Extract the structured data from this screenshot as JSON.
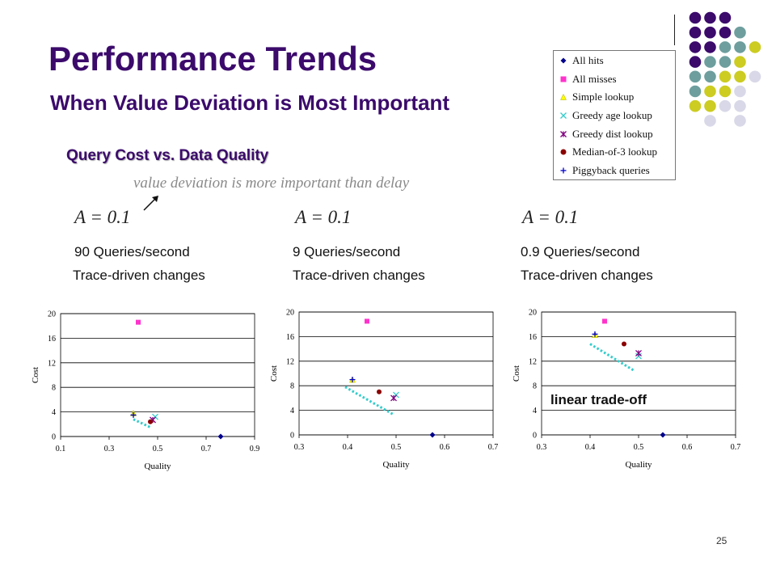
{
  "slide": {
    "title": "Performance Trends",
    "subtitle": "When Value Deviation is Most Important",
    "section_heading": "Query Cost vs. Data Quality",
    "note": "value deviation is more important than delay",
    "page_number": "25",
    "annotation": "linear trade-off"
  },
  "panels": [
    {
      "a_label": "A = 0.1",
      "rate": "90 Queries/second",
      "changes": "Trace-driven changes"
    },
    {
      "a_label": "A = 0.1",
      "rate": "9 Queries/second",
      "changes": "Trace-driven changes"
    },
    {
      "a_label": "A = 0.1",
      "rate": "0.9 Queries/second",
      "changes": "Trace-driven changes"
    }
  ],
  "legend": [
    {
      "label": "All hits",
      "marker": "diamond",
      "color": "#00008b"
    },
    {
      "label": "All misses",
      "marker": "square",
      "color": "#ff33cc"
    },
    {
      "label": "Simple lookup",
      "marker": "triangle",
      "color": "#ffff00"
    },
    {
      "label": "Greedy age lookup",
      "marker": "x",
      "color": "#33cccc"
    },
    {
      "label": "Greedy dist lookup",
      "marker": "star",
      "color": "#800080"
    },
    {
      "label": "Median-of-3 lookup",
      "marker": "circle",
      "color": "#8b0000"
    },
    {
      "label": "Piggyback queries",
      "marker": "plus",
      "color": "#0000cd"
    }
  ],
  "chart_data": [
    {
      "type": "scatter",
      "xlabel": "Quality",
      "ylabel": "Cost",
      "xlim": [
        0.1,
        0.9
      ],
      "ylim": [
        0,
        20
      ],
      "xticks": [
        "0.1",
        "0.3",
        "0.5",
        "0.7",
        "0.9"
      ],
      "yticks": [
        "0",
        "4",
        "8",
        "12",
        "16",
        "20"
      ],
      "grid": "horizontal",
      "points": [
        {
          "series": "All hits",
          "x": 0.76,
          "y": 0
        },
        {
          "series": "All misses",
          "x": 0.42,
          "y": 18.6
        },
        {
          "series": "Simple lookup",
          "x": 0.4,
          "y": 3.8
        },
        {
          "series": "Greedy age lookup",
          "x": 0.49,
          "y": 3.2
        },
        {
          "series": "Greedy dist lookup",
          "x": 0.48,
          "y": 2.7
        },
        {
          "series": "Median-of-3 lookup",
          "x": 0.47,
          "y": 2.4
        },
        {
          "series": "Piggyback queries",
          "x": 0.4,
          "y": 3.5
        }
      ],
      "tradeoff_line": {
        "from": [
          0.4,
          2.8
        ],
        "to": [
          0.47,
          1.5
        ]
      }
    },
    {
      "type": "scatter",
      "xlabel": "Quality",
      "ylabel": "Cost",
      "xlim": [
        0.3,
        0.7
      ],
      "ylim": [
        0,
        20
      ],
      "xticks": [
        "0.3",
        "0.4",
        "0.5",
        "0.6",
        "0.7"
      ],
      "yticks": [
        "0",
        "4",
        "8",
        "12",
        "16",
        "20"
      ],
      "grid": "horizontal",
      "points": [
        {
          "series": "All hits",
          "x": 0.575,
          "y": 0
        },
        {
          "series": "All misses",
          "x": 0.44,
          "y": 18.5
        },
        {
          "series": "Simple lookup",
          "x": 0.41,
          "y": 9.0
        },
        {
          "series": "Greedy age lookup",
          "x": 0.5,
          "y": 6.5
        },
        {
          "series": "Greedy dist lookup",
          "x": 0.495,
          "y": 6.0
        },
        {
          "series": "Median-of-3 lookup",
          "x": 0.465,
          "y": 7.0
        },
        {
          "series": "Piggyback queries",
          "x": 0.41,
          "y": 9.0
        }
      ],
      "tradeoff_line": {
        "from": [
          0.395,
          7.8
        ],
        "to": [
          0.495,
          3.3
        ]
      }
    },
    {
      "type": "scatter",
      "xlabel": "Quality",
      "ylabel": "Cost",
      "xlim": [
        0.3,
        0.7
      ],
      "ylim": [
        0,
        20
      ],
      "xticks": [
        "0.3",
        "0.4",
        "0.5",
        "0.6",
        "0.7"
      ],
      "yticks": [
        "0",
        "4",
        "8",
        "12",
        "16",
        "20"
      ],
      "grid": "horizontal",
      "points": [
        {
          "series": "All hits",
          "x": 0.55,
          "y": 0
        },
        {
          "series": "All misses",
          "x": 0.43,
          "y": 18.5
        },
        {
          "series": "Simple lookup",
          "x": 0.41,
          "y": 16.3
        },
        {
          "series": "Greedy age lookup",
          "x": 0.5,
          "y": 12.8
        },
        {
          "series": "Greedy dist lookup",
          "x": 0.5,
          "y": 13.3
        },
        {
          "series": "Median-of-3 lookup",
          "x": 0.47,
          "y": 14.8
        },
        {
          "series": "Piggyback queries",
          "x": 0.41,
          "y": 16.4
        }
      ],
      "tradeoff_line": {
        "from": [
          0.4,
          14.8
        ],
        "to": [
          0.49,
          10.5
        ]
      }
    }
  ],
  "decor_dots": [
    [
      "#3b0a6b",
      "#3b0a6b",
      "#3b0a6b",
      "",
      ""
    ],
    [
      "#3b0a6b",
      "#3b0a6b",
      "#3b0a6b",
      "#6e9e9e",
      ""
    ],
    [
      "#3b0a6b",
      "#3b0a6b",
      "#6e9e9e",
      "#6e9e9e",
      "#cccc22"
    ],
    [
      "#3b0a6b",
      "#6e9e9e",
      "#6e9e9e",
      "#cccc22",
      ""
    ],
    [
      "#6e9e9e",
      "#6e9e9e",
      "#cccc22",
      "#cccc22",
      "#d8d8e8"
    ],
    [
      "#6e9e9e",
      "#cccc22",
      "#cccc22",
      "#d8d8e8",
      ""
    ],
    [
      "#cccc22",
      "#cccc22",
      "#d8d8e8",
      "#d8d8e8",
      ""
    ],
    [
      "",
      "#d8d8e8",
      "",
      "#d8d8e8",
      ""
    ]
  ]
}
